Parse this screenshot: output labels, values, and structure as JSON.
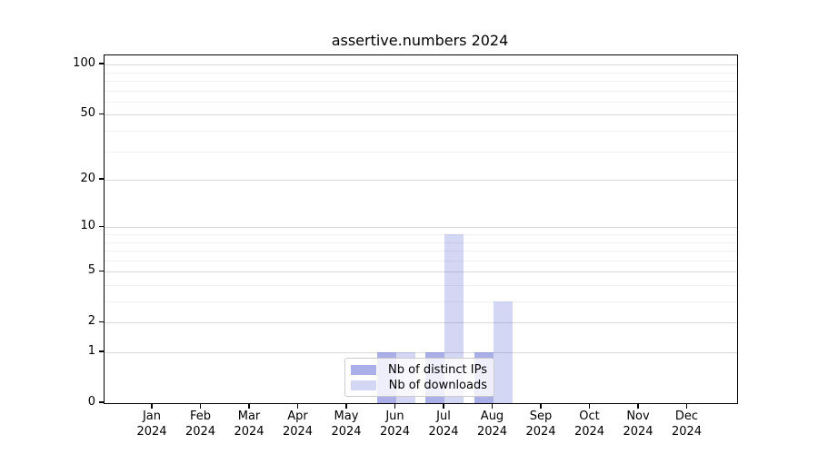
{
  "chart_data": {
    "type": "bar",
    "title": "assertive.numbers 2024",
    "scale": "log1p",
    "categories": [
      "Jan",
      "Feb",
      "Mar",
      "Apr",
      "May",
      "Jun",
      "Jul",
      "Aug",
      "Sep",
      "Oct",
      "Nov",
      "Dec"
    ],
    "category_year": "2024",
    "series": [
      {
        "name": "Nb of distinct IPs",
        "color": "rgba(85,96,210,0.5)",
        "values": [
          0,
          0,
          0,
          0,
          0,
          1,
          1,
          1,
          0,
          0,
          0,
          0
        ]
      },
      {
        "name": "Nb of downloads",
        "color": "rgba(85,96,210,0.25)",
        "values": [
          0,
          0,
          0,
          0,
          0,
          1,
          9,
          3,
          0,
          0,
          0,
          0
        ]
      }
    ],
    "y_tick_labels": [
      100,
      50,
      20,
      10,
      5,
      2,
      1,
      0
    ],
    "major_gridlines": [
      1,
      2,
      5,
      10,
      20,
      50,
      100
    ],
    "minor_gridlines": [
      3,
      4,
      6,
      7,
      8,
      9,
      30,
      40,
      60,
      70,
      80,
      90
    ],
    "ylim": [
      0,
      113
    ],
    "xlabel": "",
    "ylabel": "",
    "grid": true,
    "legend_position": "lower-center-left"
  },
  "colors": {
    "bar_distinct_ips": "rgba(85,96,210,0.5)",
    "bar_downloads": "rgba(85,96,210,0.25)",
    "grid_major": "#d9d9d9",
    "grid_minor": "#f0f0f0",
    "spine": "#000000",
    "background": "#ffffff"
  }
}
